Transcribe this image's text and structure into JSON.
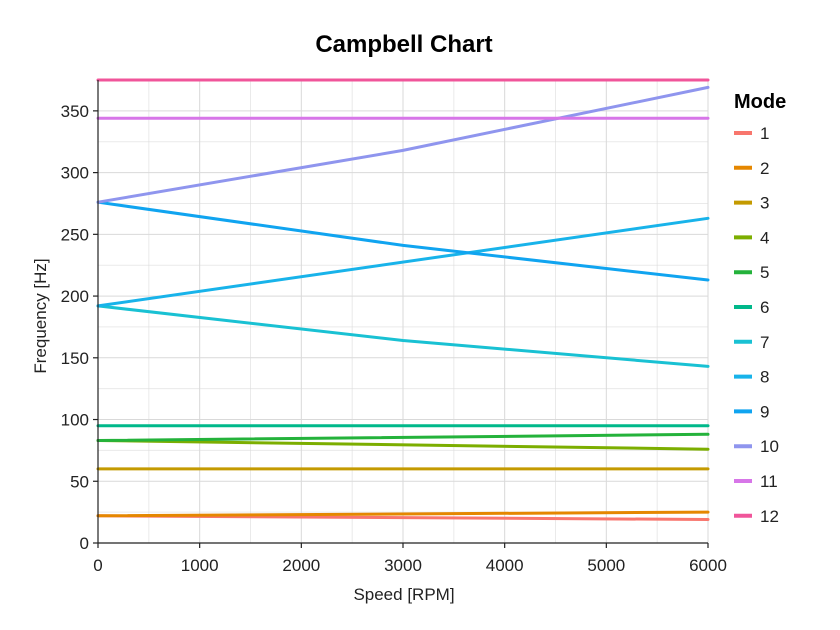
{
  "chart_data": {
    "type": "line",
    "title": "Campbell Chart",
    "xlabel": "Speed [RPM]",
    "ylabel": "Frequency [Hz]",
    "xlim": [
      0,
      6000
    ],
    "ylim": [
      0,
      375
    ],
    "xticks": [
      0,
      1000,
      2000,
      3000,
      4000,
      5000,
      6000
    ],
    "yticks": [
      0,
      50,
      100,
      150,
      200,
      250,
      300,
      350
    ],
    "grid": true,
    "legend": {
      "title": "Mode",
      "placement": "right"
    },
    "series": [
      {
        "name": "1",
        "color": "#F8766D",
        "x": [
          0,
          6000
        ],
        "y": [
          22,
          19
        ]
      },
      {
        "name": "2",
        "color": "#E58700",
        "x": [
          0,
          6000
        ],
        "y": [
          22,
          25
        ]
      },
      {
        "name": "3",
        "color": "#C49A00",
        "x": [
          0,
          6000
        ],
        "y": [
          60,
          60
        ]
      },
      {
        "name": "4",
        "color": "#7CAE00",
        "x": [
          0,
          6000
        ],
        "y": [
          83,
          76
        ]
      },
      {
        "name": "5",
        "color": "#24B23B",
        "x": [
          0,
          6000
        ],
        "y": [
          83,
          88
        ]
      },
      {
        "name": "6",
        "color": "#00B88A",
        "x": [
          0,
          6000
        ],
        "y": [
          95,
          95
        ]
      },
      {
        "name": "7",
        "color": "#19C1D3",
        "x": [
          0,
          3000,
          6000
        ],
        "y": [
          192,
          164,
          143
        ]
      },
      {
        "name": "8",
        "color": "#18B3EA",
        "x": [
          0,
          6000
        ],
        "y": [
          192,
          263
        ]
      },
      {
        "name": "9",
        "color": "#10A4F0",
        "x": [
          0,
          3000,
          6000
        ],
        "y": [
          276,
          241,
          213
        ]
      },
      {
        "name": "10",
        "color": "#8F95EE",
        "x": [
          0,
          3000,
          6000
        ],
        "y": [
          276,
          318,
          369
        ]
      },
      {
        "name": "11",
        "color": "#D776E8",
        "x": [
          0,
          6000
        ],
        "y": [
          344,
          344
        ]
      },
      {
        "name": "12",
        "color": "#F0559A",
        "x": [
          0,
          6000
        ],
        "y": [
          375,
          375
        ]
      }
    ]
  }
}
